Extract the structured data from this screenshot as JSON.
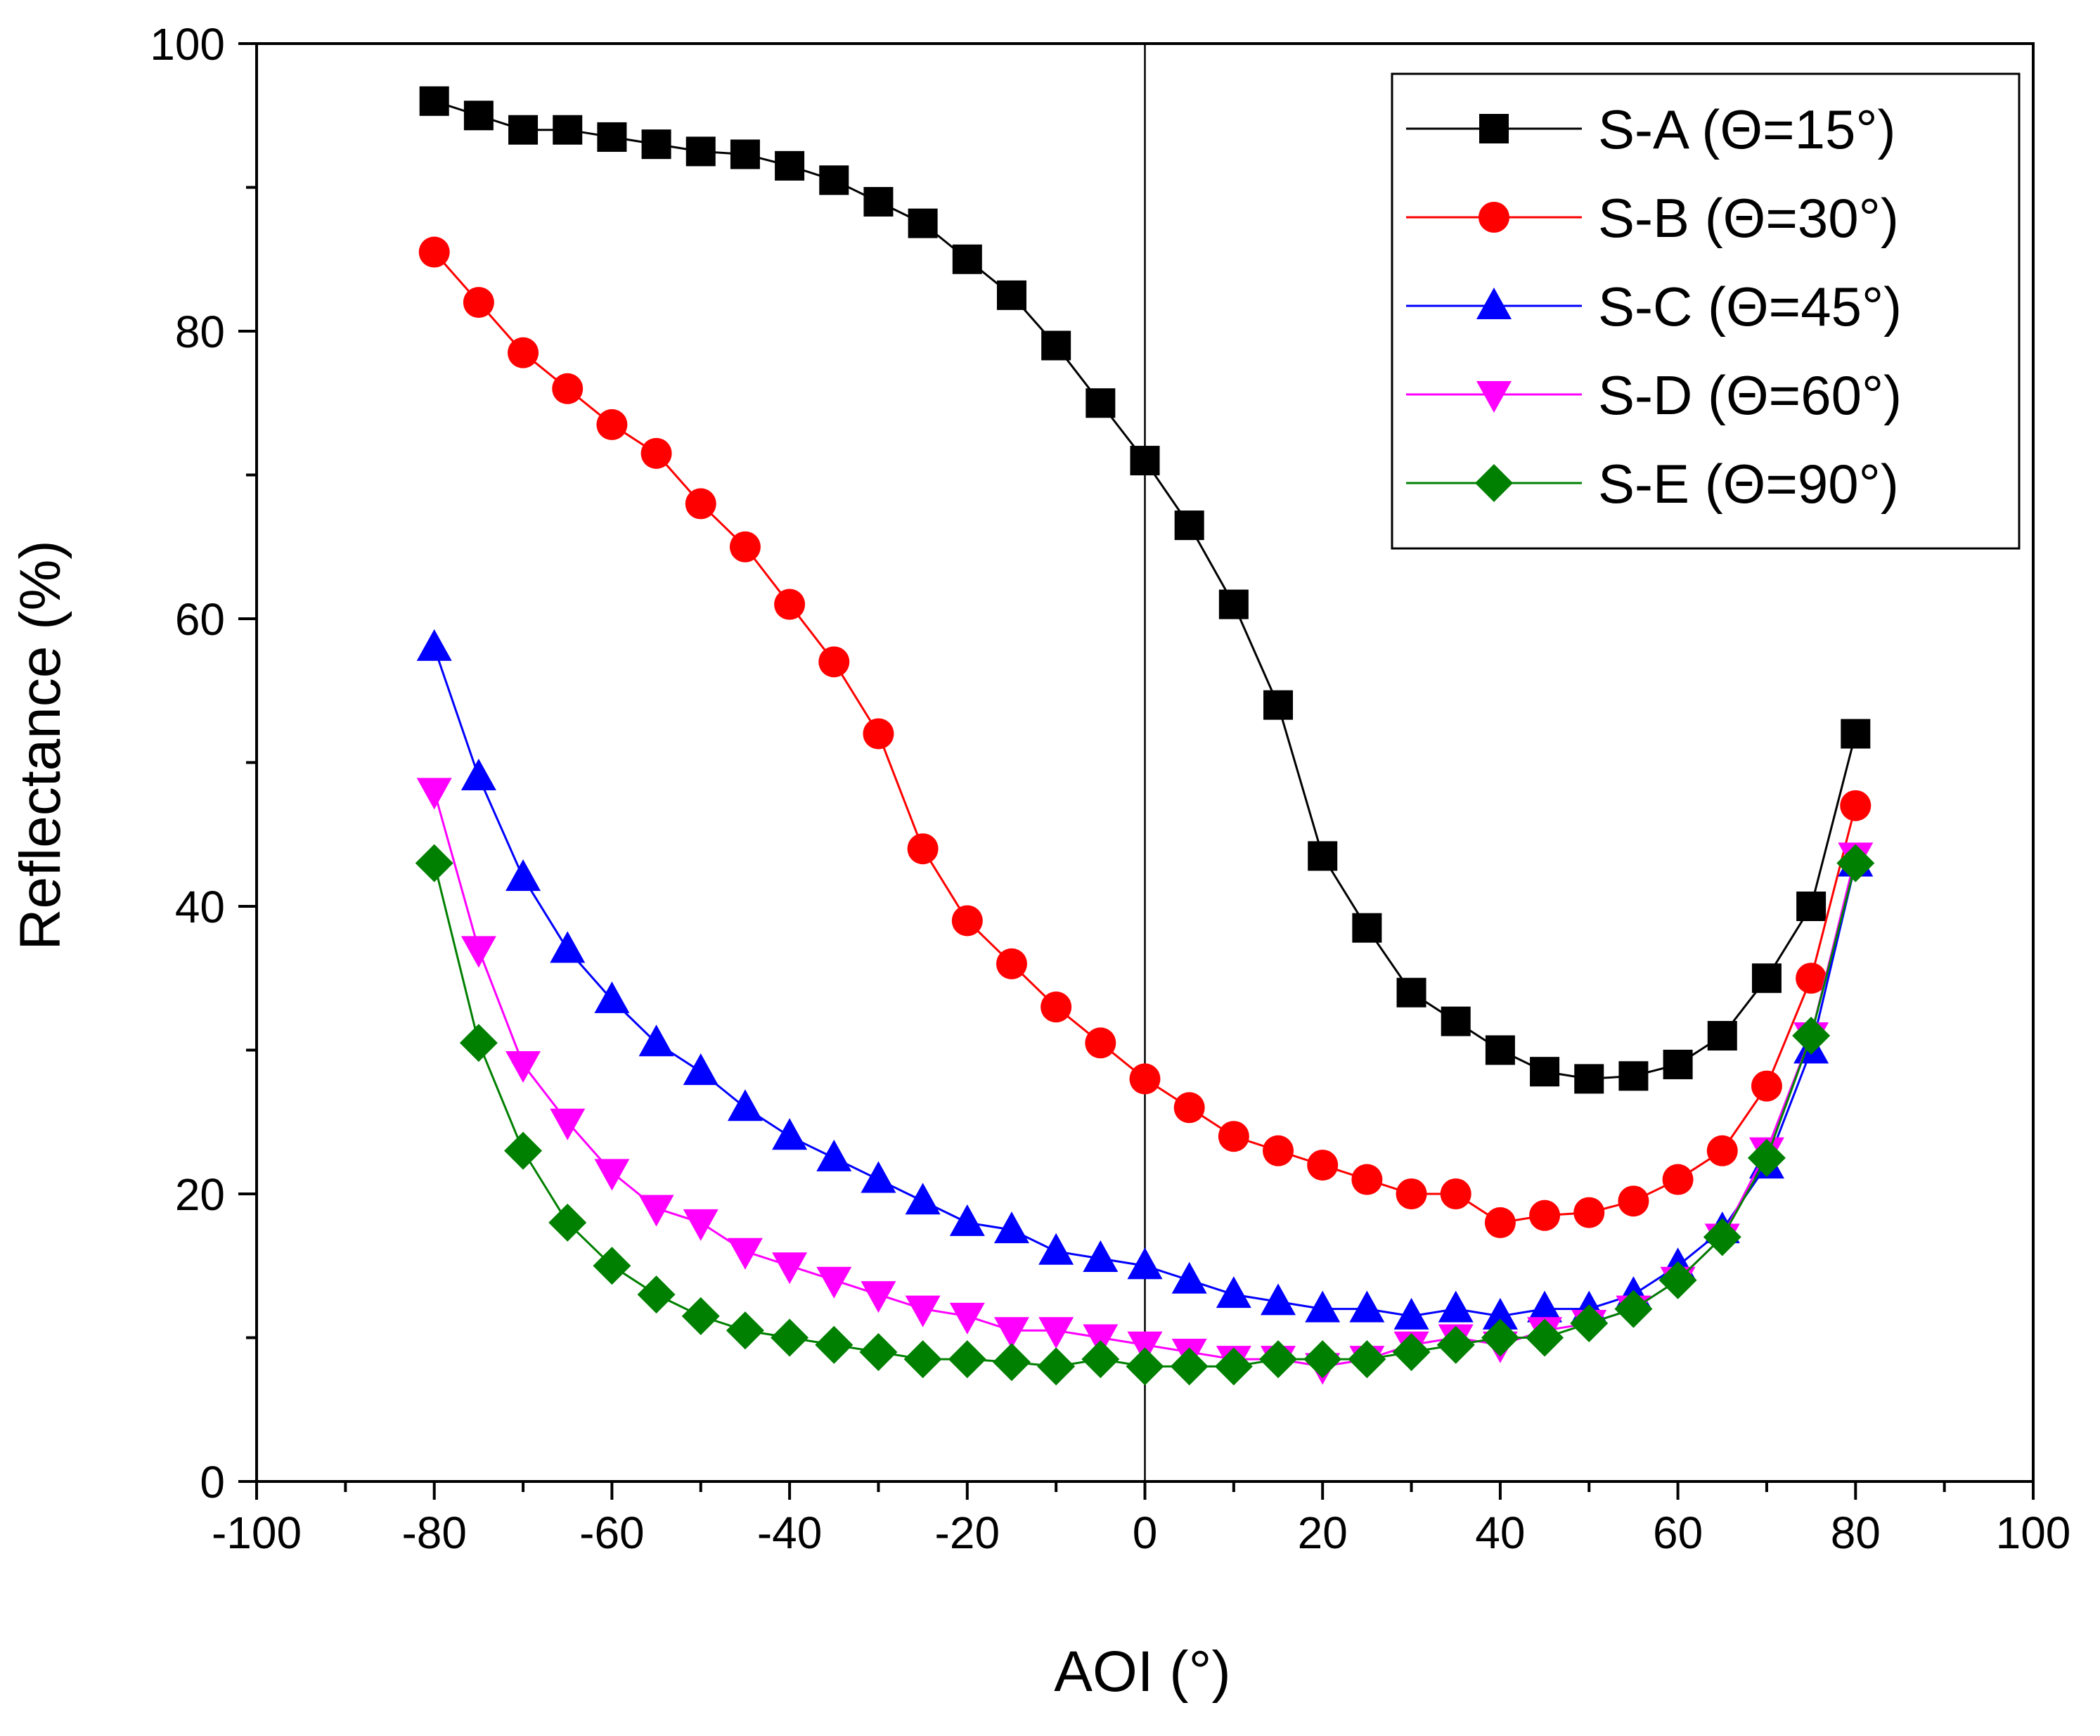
{
  "chart_data": {
    "type": "scatter",
    "title": "",
    "xlabel": "AOI (°)",
    "ylabel": "Reflectance (%)",
    "xlim": [
      -100,
      100
    ],
    "ylim": [
      0,
      100
    ],
    "xticks": [
      -100,
      -80,
      -60,
      -40,
      -20,
      0,
      20,
      40,
      60,
      80,
      100
    ],
    "yticks": [
      0,
      20,
      40,
      60,
      80,
      100
    ],
    "xtick_labels": [
      "-100",
      "-80",
      "-60",
      "-40",
      "-20",
      "0",
      "20",
      "40",
      "60",
      "80",
      "100"
    ],
    "ytick_labels": [
      "0",
      "20",
      "40",
      "60",
      "80",
      "100"
    ],
    "x_minor_step": 10,
    "y_minor_step": 10,
    "grid": false,
    "vertical_reference_line_x": 0,
    "legend_position": "top-right",
    "x": [
      -80,
      -75,
      -70,
      -65,
      -60,
      -55,
      -50,
      -45,
      -40,
      -35,
      -30,
      -25,
      -20,
      -15,
      -10,
      -5,
      0,
      5,
      10,
      15,
      20,
      25,
      30,
      35,
      40,
      45,
      50,
      55,
      60,
      65,
      70,
      75,
      80
    ],
    "series": [
      {
        "name": "S-A (Θ=15°)",
        "color": "#000000",
        "marker": "square",
        "values": [
          96,
          95,
          94,
          94,
          93.5,
          93,
          92.5,
          92.3,
          91.5,
          90.5,
          89,
          87.5,
          85,
          82.5,
          79,
          75,
          71,
          66.5,
          61,
          54,
          43.5,
          38.5,
          34,
          32,
          30,
          28.5,
          28,
          28.2,
          29,
          31,
          35,
          40,
          52
        ]
      },
      {
        "name": "S-B (Θ=30°)",
        "color": "#ff0000",
        "marker": "circle",
        "values": [
          85.5,
          82,
          78.5,
          76,
          73.5,
          71.5,
          68,
          65,
          61,
          57,
          52,
          44,
          39,
          36,
          33,
          30.5,
          28,
          26,
          24,
          23,
          22,
          21,
          20,
          20,
          18,
          18.5,
          18.7,
          19.5,
          21,
          23,
          27.5,
          35,
          47
        ]
      },
      {
        "name": "S-C (Θ=45°)",
        "color": "#0000ff",
        "marker": "triangle-up",
        "values": [
          58,
          49,
          42,
          37,
          33.5,
          30.5,
          28.5,
          26,
          24,
          22.5,
          21,
          19.5,
          18,
          17.5,
          16,
          15.5,
          15,
          14,
          13,
          12.5,
          12,
          12,
          11.5,
          12,
          11.5,
          12,
          12,
          13,
          15,
          17.5,
          22,
          30,
          43
        ]
      },
      {
        "name": "S-D (Θ=60°)",
        "color": "#ff00ff",
        "marker": "triangle-down",
        "values": [
          48,
          37,
          29,
          25,
          21.5,
          19,
          18,
          16,
          15,
          14,
          13,
          12,
          11.5,
          10.5,
          10.5,
          10,
          9.5,
          9,
          8.5,
          8.5,
          8,
          8.5,
          9.5,
          10,
          9.5,
          10.5,
          11,
          12,
          14,
          17,
          23,
          31,
          43.5
        ]
      },
      {
        "name": "S-E (Θ=90°)",
        "color": "#008000",
        "marker": "diamond",
        "values": [
          43,
          30.5,
          23,
          18,
          15,
          13,
          11.5,
          10.5,
          10,
          9.5,
          9,
          8.5,
          8.5,
          8.3,
          8,
          8.5,
          8,
          8,
          8,
          8.5,
          8.5,
          8.5,
          9,
          9.5,
          10,
          10,
          11,
          12,
          14,
          17,
          22.5,
          31,
          43
        ]
      }
    ]
  }
}
